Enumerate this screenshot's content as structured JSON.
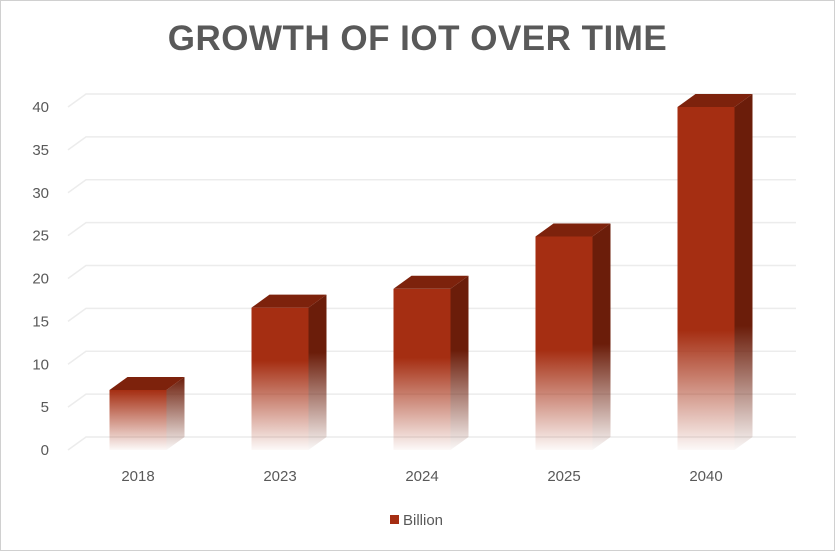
{
  "chart_data": {
    "type": "bar",
    "title": "GROWTH OF IOT OVER TIME",
    "categories": [
      "2018",
      "2023",
      "2024",
      "2025",
      "2040"
    ],
    "series": [
      {
        "name": "Billion",
        "values": [
          7,
          16.6,
          18.8,
          24.9,
          40
        ]
      }
    ],
    "ylim": [
      0,
      40
    ],
    "yticks": [
      0,
      5,
      10,
      15,
      20,
      25,
      30,
      35,
      40
    ],
    "grid": true,
    "legend": "bottom",
    "style": "3d-column",
    "colors": {
      "front": "#a52e12",
      "side": "#6b1d0a",
      "top": "#7d220c"
    }
  }
}
